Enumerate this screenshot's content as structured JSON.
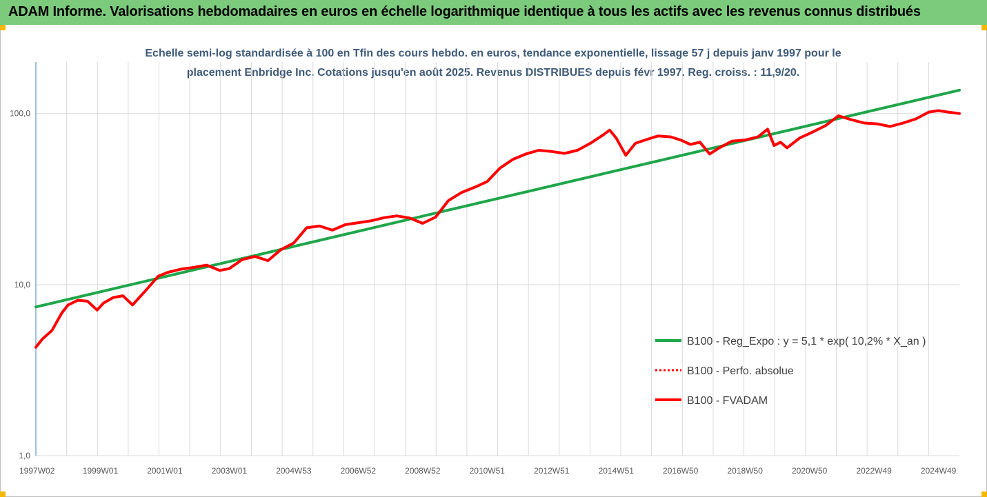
{
  "banner": {
    "title": "ADAM Informe. Valorisations hebdomadaires en euros en échelle logarithmique identique à tous les actifs avec les revenus connus distribués",
    "background": "#7ccb7c"
  },
  "chart_data": {
    "type": "line",
    "title": "Echelle semi-log standardisée à 100 en Tfin des cours hebdo. en euros, tendance exponentielle, lissage 57 j depuis janv 1997 pour le placement Enbridge Inc. Cotations jusqu'en août 2025. Revenus DISTRIBUES depuis févr 1997. Reg. croiss. : 11,9/20.",
    "xlabel": "",
    "ylabel": "",
    "y_scale": "log",
    "ylim": [
      1,
      200
    ],
    "xlim": [
      1997.0,
      2025.65
    ],
    "y_ticks": [
      1,
      10,
      100
    ],
    "y_tick_labels": [
      "1,0",
      "10,0",
      "100,0"
    ],
    "x_tick_labels": [
      "1997W02",
      "1999W01",
      "2001W01",
      "2003W01",
      "2004W53",
      "2006W52",
      "2008W52",
      "2010W51",
      "2012W51",
      "2014W51",
      "2016W50",
      "2018W50",
      "2020W50",
      "2022W49",
      "2024W49"
    ],
    "x_tick_positions": [
      1997.0,
      1999.0,
      2001.0,
      2003.0,
      2005.0,
      2007.0,
      2009.0,
      2011.0,
      2013.0,
      2015.0,
      2017.0,
      2019.0,
      2021.0,
      2023.0,
      2025.0
    ],
    "grid": {
      "vertical": true,
      "horizontal": true
    },
    "legend_position": "right",
    "series": [
      {
        "name": "B100 - Reg_Expo : y = 5,1 * exp( 10,2% *  X_an )",
        "color": "#1fa64a",
        "style": "solid",
        "x": [
          1997.0,
          2025.65
        ],
        "y": [
          7.4,
          137
        ]
      },
      {
        "name": "B100 - Perfo. absolue",
        "color": "#ff0000",
        "style": "dotted",
        "x": [],
        "y": []
      },
      {
        "name": "B100 - FVADAM",
        "color": "#ff0000",
        "style": "solid",
        "x": [
          1997.0,
          1997.2,
          1997.5,
          1997.8,
          1998.0,
          1998.3,
          1998.6,
          1998.9,
          1999.1,
          1999.4,
          1999.7,
          2000.0,
          2000.4,
          2000.8,
          2001.1,
          2001.5,
          2001.9,
          2002.3,
          2002.7,
          2003.0,
          2003.4,
          2003.8,
          2004.2,
          2004.6,
          2005.0,
          2005.4,
          2005.8,
          2006.2,
          2006.6,
          2007.0,
          2007.4,
          2007.8,
          2008.2,
          2008.6,
          2009.0,
          2009.4,
          2009.8,
          2010.2,
          2010.6,
          2011.0,
          2011.4,
          2011.8,
          2012.2,
          2012.6,
          2013.0,
          2013.4,
          2013.8,
          2014.2,
          2014.6,
          2014.8,
          2015.0,
          2015.3,
          2015.6,
          2015.9,
          2016.3,
          2016.7,
          2017.0,
          2017.3,
          2017.6,
          2017.9,
          2018.2,
          2018.6,
          2019.0,
          2019.4,
          2019.7,
          2019.9,
          2020.1,
          2020.3,
          2020.7,
          2021.1,
          2021.5,
          2021.9,
          2022.3,
          2022.7,
          2023.1,
          2023.5,
          2023.9,
          2024.3,
          2024.7,
          2025.0,
          2025.3,
          2025.65
        ],
        "y": [
          4.3,
          4.8,
          5.4,
          6.8,
          7.6,
          8.1,
          8.0,
          7.1,
          7.8,
          8.4,
          8.6,
          7.6,
          9.2,
          11.2,
          11.8,
          12.3,
          12.6,
          13.0,
          12.1,
          12.4,
          14.0,
          14.6,
          13.8,
          16.0,
          17.5,
          21.5,
          22.0,
          20.8,
          22.4,
          23.0,
          23.6,
          24.6,
          25.2,
          24.5,
          22.8,
          24.8,
          31.0,
          34.5,
          37.0,
          40.0,
          48.0,
          54.0,
          58.0,
          61.0,
          60.0,
          58.5,
          61.0,
          67.0,
          75.0,
          80.0,
          72.0,
          57.0,
          67.0,
          70.0,
          74.0,
          73.0,
          70.0,
          66.0,
          68.0,
          58.0,
          63.0,
          69.0,
          70.0,
          73.0,
          81.0,
          65.0,
          68.0,
          63.0,
          72.0,
          78.0,
          85.0,
          97.0,
          92.0,
          88.0,
          87.0,
          84.0,
          88.0,
          93.0,
          102.0,
          104.0,
          102.0,
          100.0
        ]
      }
    ]
  }
}
